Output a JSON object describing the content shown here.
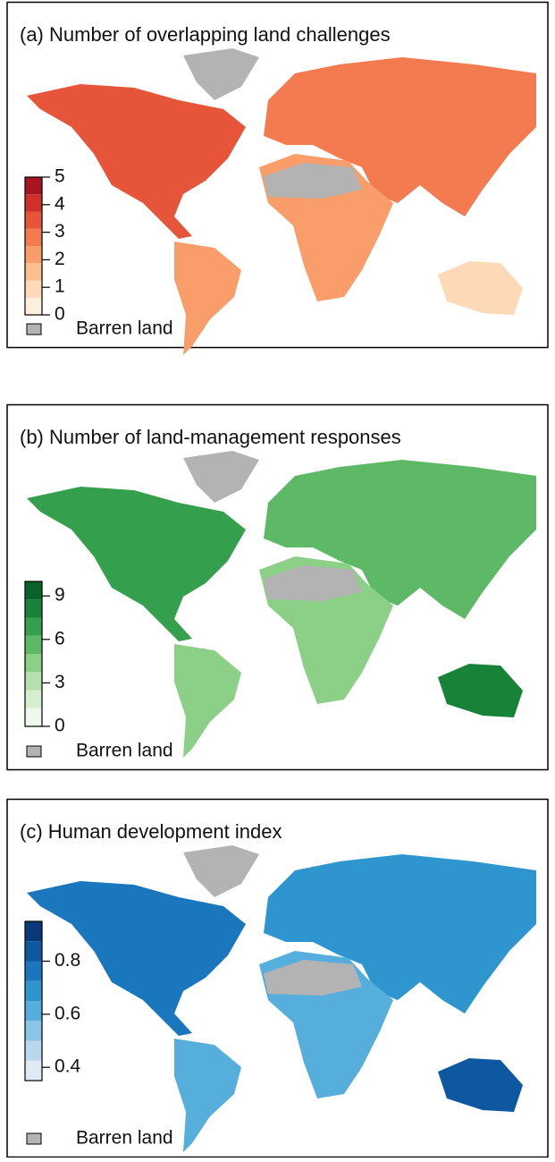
{
  "panels": [
    {
      "title": "(a) Number of overlapping land challenges",
      "ticks": [
        0,
        1,
        2,
        3,
        4,
        5
      ],
      "range": [
        0,
        5
      ],
      "colors": [
        "#fdeedd",
        "#fdd9b7",
        "#fcbf8e",
        "#f99d6a",
        "#f47a4f",
        "#e6553a",
        "#cf3128",
        "#a81420"
      ],
      "barren_label": "Barren land",
      "barren_color": "#b3b3b3"
    },
    {
      "title": "(b) Number of land-management responses",
      "ticks": [
        0,
        3,
        6,
        9
      ],
      "range": [
        0,
        10
      ],
      "colors": [
        "#eef8ec",
        "#d5eed0",
        "#b5e0ad",
        "#8ccf86",
        "#5db965",
        "#34a04d",
        "#188338",
        "#08622a"
      ],
      "barren_label": "Barren land",
      "barren_color": "#b3b3b3"
    },
    {
      "title": "(c) Human development index",
      "ticks": [
        0.4,
        0.6,
        0.8
      ],
      "range": [
        0.35,
        0.95
      ],
      "colors": [
        "#deebf7",
        "#b9d8ee",
        "#8ac4e6",
        "#55aedb",
        "#2e95cf",
        "#1a77bd",
        "#0e58a2",
        "#083a7a"
      ],
      "barren_label": "Barren land",
      "barren_color": "#b3b3b3"
    }
  ]
}
